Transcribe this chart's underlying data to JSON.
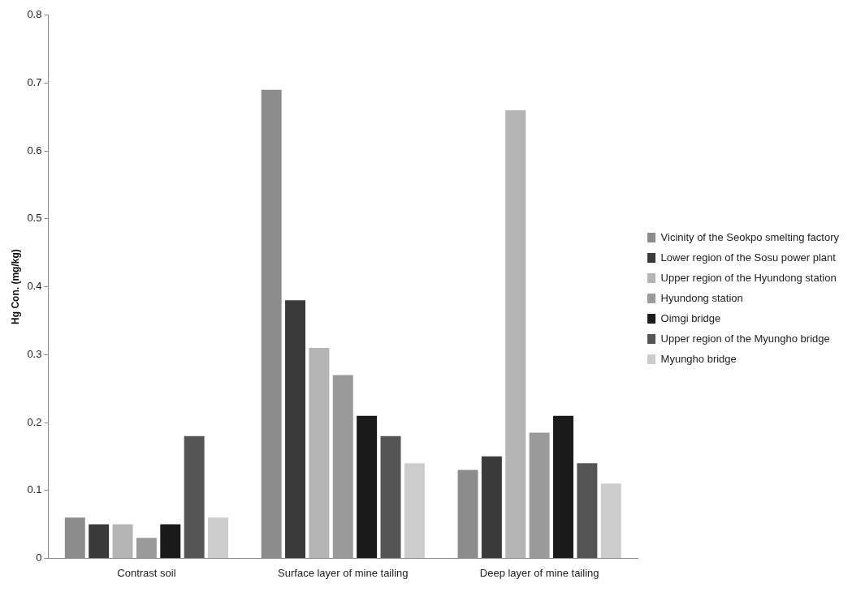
{
  "chart_data": {
    "type": "bar",
    "ylabel": "Hg Con. (mg/kg)",
    "categories": [
      "Contrast soil",
      "Surface layer of mine tailing",
      "Deep layer of mine tailing"
    ],
    "series": [
      {
        "name": "Vicinity of the Seokpo smelting factory",
        "color": "#8c8c8c",
        "values": [
          0.06,
          0.69,
          0.13
        ]
      },
      {
        "name": "Lower region of the Sosu power plant",
        "color": "#3a3a3a",
        "values": [
          0.05,
          0.38,
          0.15
        ]
      },
      {
        "name": "Upper region of the Hyundong station",
        "color": "#b4b4b4",
        "values": [
          0.05,
          0.31,
          0.66
        ]
      },
      {
        "name": "Hyundong station",
        "color": "#9a9a9a",
        "values": [
          0.03,
          0.27,
          0.185
        ]
      },
      {
        "name": "Oimgi bridge",
        "color": "#1a1a1a",
        "values": [
          0.05,
          0.21,
          0.21
        ]
      },
      {
        "name": "Upper region of the Myungho bridge",
        "color": "#555555",
        "values": [
          0.18,
          0.18,
          0.14
        ]
      },
      {
        "name": "Myungho bridge",
        "color": "#cccccc",
        "values": [
          0.06,
          0.14,
          0.11
        ]
      }
    ],
    "ylim": [
      0,
      0.8
    ],
    "yticks": [
      0,
      0.1,
      0.2,
      0.3,
      0.4,
      0.5,
      0.6,
      0.7,
      0.8
    ],
    "grid": false,
    "legend": "right"
  }
}
